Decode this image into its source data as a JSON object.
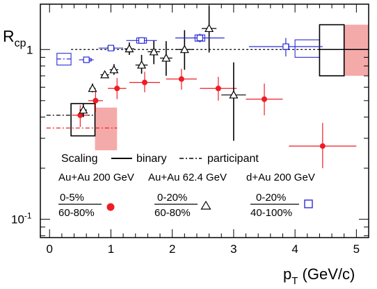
{
  "chart_data": {
    "type": "scatter",
    "title": "",
    "xlabel": {
      "main": "p",
      "sub": "T",
      "rest": " (GeV/c)"
    },
    "ylabel": {
      "main": "R",
      "sub": "cp"
    },
    "xlim": [
      -0.15,
      5.2
    ],
    "ylim": [
      0.078,
      1.85
    ],
    "ylog": true,
    "grid": false,
    "x_ticks": [
      "0",
      "1",
      "2",
      "3",
      "4",
      "5"
    ],
    "y_ticks": [
      {
        "value": 1,
        "label": "1"
      },
      {
        "value": 0.1,
        "label": "10",
        "exp": "-1"
      }
    ],
    "colors": {
      "red": "#ee1c24",
      "blue": "#2b2bd6",
      "black": "#000000",
      "band": "#f5aaaa"
    },
    "series": [
      {
        "name": "Au+Au 200 GeV",
        "marker": "filled-circle",
        "color": "#ee1c24",
        "points": [
          {
            "x": 0.5,
            "y": 0.41,
            "xerr": 0.13,
            "ylo": 0.35,
            "yhi": 0.47
          },
          {
            "x": 0.75,
            "y": 0.5,
            "xerr": 0.12,
            "ylo": 0.43,
            "yhi": 0.57
          },
          {
            "x": 1.1,
            "y": 0.59,
            "xerr": 0.15,
            "ylo": 0.51,
            "yhi": 0.68
          },
          {
            "x": 1.55,
            "y": 0.64,
            "xerr": 0.25,
            "ylo": 0.56,
            "yhi": 0.74
          },
          {
            "x": 2.15,
            "y": 0.67,
            "xerr": 0.25,
            "ylo": 0.58,
            "yhi": 0.77
          },
          {
            "x": 2.75,
            "y": 0.59,
            "xerr": 0.3,
            "ylo": 0.5,
            "yhi": 0.69
          },
          {
            "x": 3.5,
            "y": 0.51,
            "xerr": 0.3,
            "ylo": 0.41,
            "yhi": 0.63
          },
          {
            "x": 4.45,
            "y": 0.27,
            "xerr": 0.55,
            "ylo": 0.2,
            "yhi": 0.37
          }
        ]
      },
      {
        "name": "Au+Au 62.4 GeV",
        "marker": "open-triangle",
        "color": "#000000",
        "points": [
          {
            "x": 0.55,
            "y": 0.44,
            "xerr": 0.06,
            "ylo": 0.4,
            "yhi": 0.48
          },
          {
            "x": 0.7,
            "y": 0.59,
            "xerr": 0.05,
            "ylo": 0.56,
            "yhi": 0.63
          },
          {
            "x": 0.9,
            "y": 0.71,
            "xerr": 0.07,
            "ylo": 0.69,
            "yhi": 0.73
          },
          {
            "x": 1.05,
            "y": 0.76,
            "xerr": 0.07,
            "ylo": 0.71,
            "yhi": 0.82
          },
          {
            "x": 1.3,
            "y": 1.01,
            "xerr": 0.08,
            "ylo": 0.93,
            "yhi": 1.1
          },
          {
            "x": 1.5,
            "y": 0.81,
            "xerr": 0.1,
            "ylo": 0.72,
            "yhi": 0.93
          },
          {
            "x": 1.7,
            "y": 0.97,
            "xerr": 0.1,
            "ylo": 0.82,
            "yhi": 1.13
          },
          {
            "x": 1.9,
            "y": 0.89,
            "xerr": 0.1,
            "ylo": 0.7,
            "yhi": 1.12
          },
          {
            "x": 2.2,
            "y": 1.0,
            "xerr": 0.15,
            "ylo": 0.76,
            "yhi": 1.3
          },
          {
            "x": 2.6,
            "y": 1.33,
            "xerr": 0.12,
            "ylo": 0.96,
            "yhi": 1.8
          },
          {
            "x": 3.0,
            "y": 0.54,
            "xerr": 0.2,
            "ylo": 0.29,
            "yhi": 0.84
          }
        ]
      },
      {
        "name": "d+Au 200 GeV",
        "marker": "open-square",
        "color": "#2b2bd6",
        "points": [
          {
            "x": 0.6,
            "y": 0.87,
            "xerr": 0.12,
            "ylo": 0.84,
            "yhi": 0.9
          },
          {
            "x": 1.0,
            "y": 1.02,
            "xerr": 0.2,
            "ylo": 0.99,
            "yhi": 1.05
          },
          {
            "x": 1.5,
            "y": 1.13,
            "xerr": 0.25,
            "ylo": 1.08,
            "yhi": 1.18
          },
          {
            "x": 2.45,
            "y": 1.17,
            "xerr": 0.4,
            "ylo": 1.1,
            "yhi": 1.24
          },
          {
            "x": 3.85,
            "y": 1.04,
            "xerr": 0.6,
            "ylo": 0.91,
            "yhi": 1.17
          }
        ]
      }
    ],
    "systematic_boxes": [
      {
        "x0": 0.12,
        "x1": 0.35,
        "ylo": 0.81,
        "yhi": 0.95,
        "color": "#2b2bd6"
      },
      {
        "x0": 0.62,
        "x1": 0.68,
        "ylo": 0.855,
        "yhi": 0.885,
        "color": "#2b2bd6"
      },
      {
        "x0": 0.95,
        "x1": 1.05,
        "ylo": 0.99,
        "yhi": 1.04,
        "color": "#2b2bd6"
      },
      {
        "x0": 1.42,
        "x1": 1.58,
        "ylo": 1.09,
        "yhi": 1.17,
        "color": "#2b2bd6"
      },
      {
        "x0": 2.37,
        "x1": 2.53,
        "ylo": 1.12,
        "yhi": 1.22,
        "color": "#2b2bd6"
      },
      {
        "x0": 3.82,
        "x1": 3.9,
        "ylo": 1.0,
        "yhi": 1.07,
        "color": "#2b2bd6"
      },
      {
        "x0": 4.0,
        "x1": 4.4,
        "ylo": 0.9,
        "yhi": 1.14,
        "color": "#2b2bd6"
      },
      {
        "x0": 0.35,
        "x1": 0.74,
        "ylo": 0.31,
        "yhi": 0.48,
        "color": "#000000"
      },
      {
        "x0": 4.4,
        "x1": 4.8,
        "ylo": 0.7,
        "yhi": 1.4,
        "color": "#000000"
      }
    ],
    "shaded_bands": [
      {
        "x0": 0.74,
        "x1": 1.1,
        "ylo": 0.255,
        "yhi": 0.455,
        "color": "#f5aaaa"
      },
      {
        "x0": 4.8,
        "x1": 5.2,
        "ylo": 0.7,
        "yhi": 1.4,
        "color": "#f5aaaa"
      }
    ],
    "reference_lines": [
      {
        "type": "binary",
        "style": "solid",
        "x0": 4.4,
        "x1": 5.2,
        "y": 1.0,
        "color": "#000000"
      },
      {
        "type": "binary",
        "style": "dashed",
        "x0": 0.35,
        "x1": 4.4,
        "y": 1.0,
        "color": "#000000"
      },
      {
        "type": "participant",
        "style": "dash-dot",
        "x0": 0.12,
        "x1": 0.35,
        "y": 0.88,
        "color": "#2b2bd6"
      },
      {
        "type": "participant",
        "style": "dash-dot",
        "x0": -0.05,
        "x1": 1.1,
        "y": 0.345,
        "color": "#ee1c24"
      },
      {
        "type": "participant",
        "style": "dash-dot",
        "x0": -0.05,
        "x1": 0.74,
        "y": 0.41,
        "color": "#000000"
      }
    ],
    "legend": {
      "position": "bottom-left",
      "scaling_label": "Scaling",
      "binary_label": "binary",
      "participant_label": "participant",
      "systems": [
        "Au+Au 200 GeV",
        "Au+Au 62.4 GeV",
        "d+Au 200 GeV"
      ],
      "ratios": [
        {
          "num": "0-5%",
          "den": "60-80%",
          "marker": "filled-circle",
          "color": "#ee1c24"
        },
        {
          "num": "0-20%",
          "den": "60-80%",
          "marker": "open-triangle",
          "color": "#000000"
        },
        {
          "num": "0-20%",
          "den": "40-100%",
          "marker": "open-square",
          "color": "#2b2bd6"
        }
      ]
    }
  }
}
